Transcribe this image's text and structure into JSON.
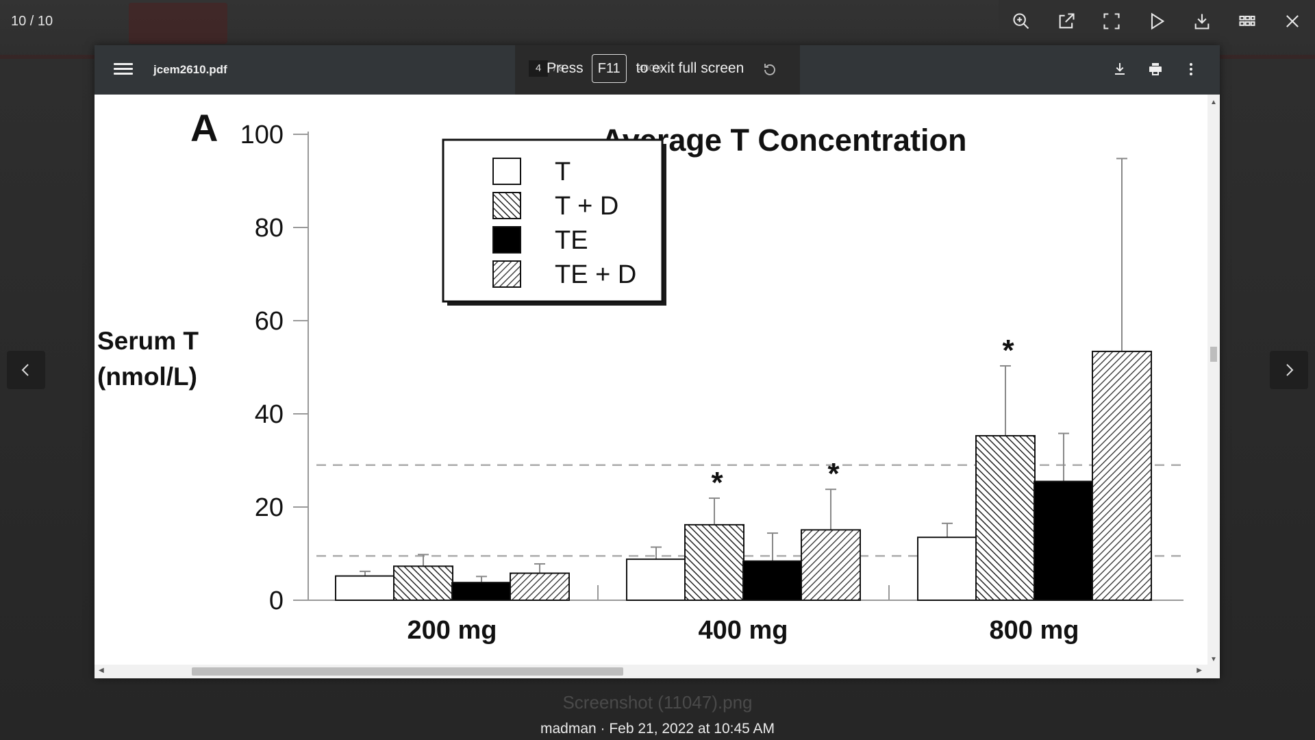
{
  "lightbox": {
    "counter": "10 / 10",
    "filename_behind": "Screenshot (11047).png",
    "caption": "madman · Feb 21, 2022 at 10:45 AM",
    "actions": [
      {
        "icon": "zoom-in-icon"
      },
      {
        "icon": "open-external-icon"
      },
      {
        "icon": "fullscreen-icon"
      },
      {
        "icon": "play-slideshow-icon"
      },
      {
        "icon": "download-icon"
      },
      {
        "icon": "grid-icon"
      },
      {
        "icon": "close-icon"
      }
    ]
  },
  "viewer": {
    "filename": "jcem2610.pdf",
    "page_current": "4",
    "page_total": "/ 8",
    "zoom": "400%",
    "fullscreen_notice": {
      "before": "Press",
      "key": "F11",
      "after": "to exit full screen"
    }
  },
  "chart_data": {
    "type": "bar",
    "panel_label": "A",
    "title": "Average T Concentration",
    "ylabel": "Serum T (nmol/L)",
    "ylabel_lines": [
      "Serum T",
      "(nmol/L)"
    ],
    "ylim": [
      0,
      100
    ],
    "yticks": [
      "0",
      "20",
      "40",
      "60",
      "80",
      "100"
    ],
    "categories": [
      "200 mg",
      "400 mg",
      "800 mg"
    ],
    "legend_placement": "top-left",
    "series": [
      {
        "name": "T",
        "values": [
          5.2,
          8.8,
          13.5
        ],
        "errors": [
          1.0,
          2.6,
          3.0
        ],
        "fill": "white",
        "significant": [
          false,
          false,
          false
        ]
      },
      {
        "name": "T + D",
        "values": [
          7.3,
          16.2,
          35.3
        ],
        "errors": [
          2.5,
          5.7,
          15.0
        ],
        "fill": "hatch-backslash",
        "significant": [
          false,
          true,
          true
        ]
      },
      {
        "name": "TE",
        "values": [
          3.8,
          8.4,
          25.5
        ],
        "errors": [
          1.3,
          6.0,
          10.3
        ],
        "fill": "black",
        "significant": [
          false,
          false,
          false
        ]
      },
      {
        "name": "TE + D",
        "values": [
          5.8,
          15.1,
          53.4
        ],
        "errors": [
          2.0,
          8.7,
          41.4
        ],
        "fill": "hatch-slash",
        "significant": [
          false,
          true,
          false
        ]
      }
    ],
    "significance_marker": "*",
    "reference_lines": [
      9.5,
      29.0
    ]
  }
}
